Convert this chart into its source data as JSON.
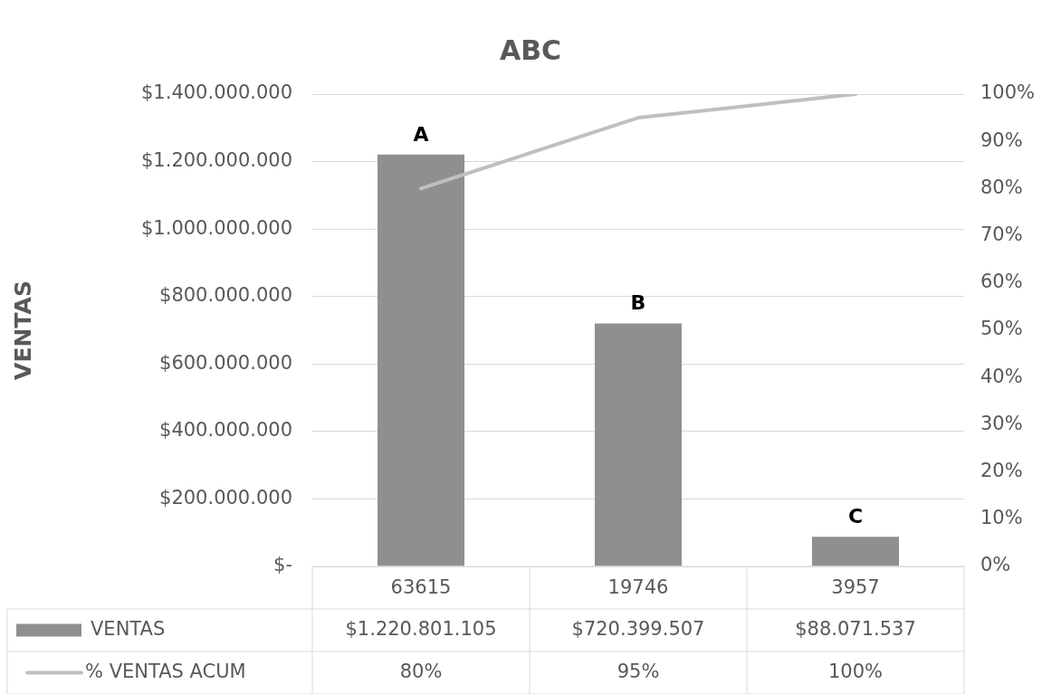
{
  "chart_data": {
    "type": "bar",
    "title": "ABC",
    "ylabel": "VENTAS",
    "categories": [
      "63615",
      "19746",
      "3957"
    ],
    "series": [
      {
        "name": "VENTAS",
        "color": "#8f8f8f",
        "values": [
          1220801105,
          720399507,
          88071537
        ],
        "value_labels": [
          "$1.220.801.105",
          "$720.399.507",
          "$88.071.537"
        ]
      },
      {
        "name": "% VENTAS ACUM",
        "type": "line",
        "axis": "y2",
        "color": "#bfbfbf",
        "values": [
          80,
          95,
          100
        ],
        "value_labels": [
          "80%",
          "95%",
          "100%"
        ]
      }
    ],
    "ylim": [
      0,
      1400000000
    ],
    "yticks": [
      {
        "value": 0,
        "label": "$-"
      },
      {
        "value": 200000000,
        "label": "$200.000.000"
      },
      {
        "value": 400000000,
        "label": "$400.000.000"
      },
      {
        "value": 600000000,
        "label": "$600.000.000"
      },
      {
        "value": 800000000,
        "label": "$800.000.000"
      },
      {
        "value": 1000000000,
        "label": "$1.000.000.000"
      },
      {
        "value": 1200000000,
        "label": "$1.200.000.000"
      },
      {
        "value": 1400000000,
        "label": "$1.400.000.000"
      }
    ],
    "y2lim": [
      0,
      100
    ],
    "y2ticks": [
      {
        "value": 0,
        "label": "0%"
      },
      {
        "value": 10,
        "label": "10%"
      },
      {
        "value": 20,
        "label": "20%"
      },
      {
        "value": 30,
        "label": "30%"
      },
      {
        "value": 40,
        "label": "40%"
      },
      {
        "value": 50,
        "label": "50%"
      },
      {
        "value": 60,
        "label": "60%"
      },
      {
        "value": 70,
        "label": "70%"
      },
      {
        "value": 80,
        "label": "80%"
      },
      {
        "value": 90,
        "label": "90%"
      },
      {
        "value": 100,
        "label": "100%"
      }
    ],
    "annotations": [
      {
        "text": "A",
        "x": "63615",
        "y": 1220801105
      },
      {
        "text": "B",
        "x": "19746",
        "y": 720399507
      },
      {
        "text": "C",
        "x": "3957",
        "y": 88071537
      }
    ],
    "grid": "y",
    "legend": "bottom",
    "marker": "none",
    "line_style": "solid"
  }
}
